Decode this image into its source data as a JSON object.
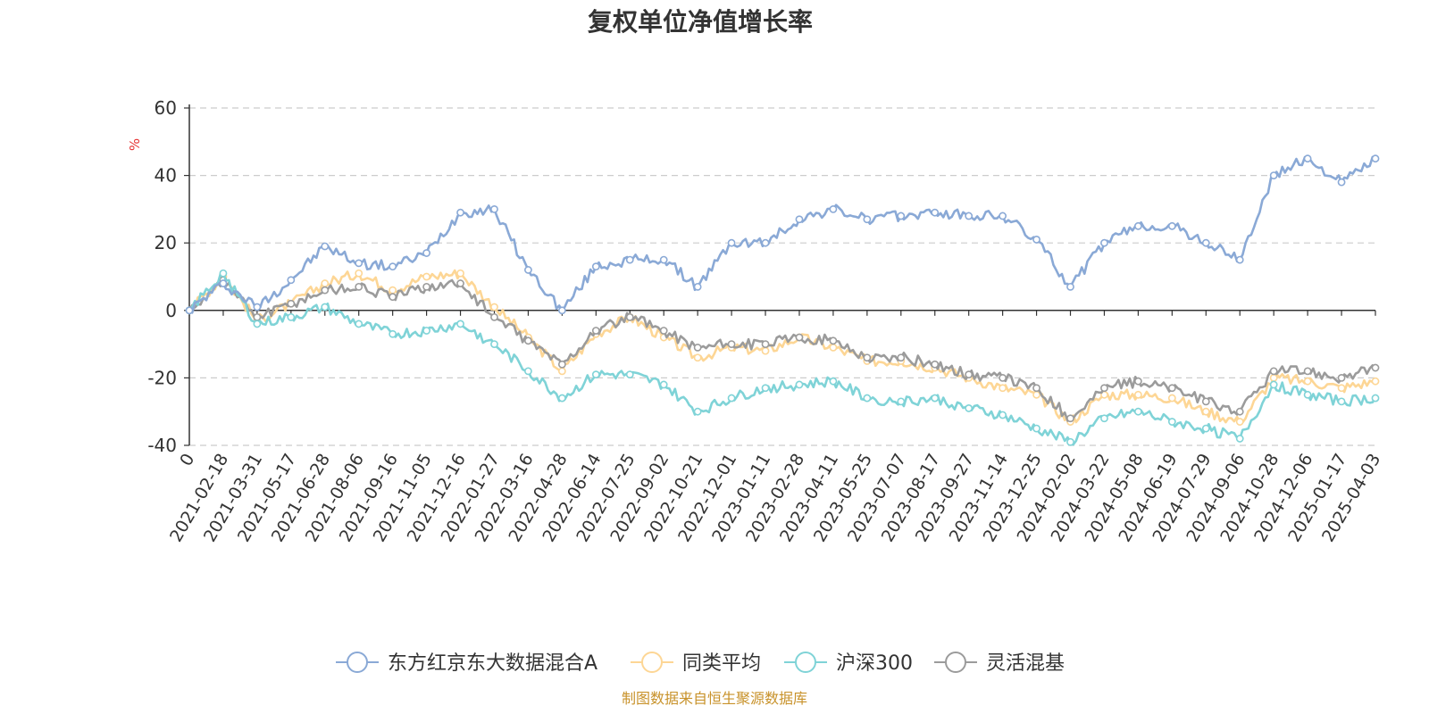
{
  "colors": {
    "series": [
      "#8aa9d6",
      "#fdd695",
      "#7fd3d7",
      "#9b9b9b"
    ],
    "unit": "#e63333",
    "source": "#c8922a",
    "grid": "#cccccc",
    "axis": "#333333"
  },
  "chart_data": {
    "type": "line",
    "title": "复权单位净值增长率",
    "ylabel": "%",
    "ylim": [
      -40,
      60
    ],
    "yticks": [
      "-40",
      "-20",
      "0",
      "20",
      "40",
      "60"
    ],
    "categories": [
      "0",
      "2021-02-18",
      "2021-03-31",
      "2021-05-17",
      "2021-06-28",
      "2021-08-06",
      "2021-09-16",
      "2021-11-05",
      "2021-12-16",
      "2022-01-27",
      "2022-03-16",
      "2022-04-28",
      "2022-06-14",
      "2022-07-25",
      "2022-09-02",
      "2022-10-21",
      "2022-12-01",
      "2023-01-11",
      "2023-02-28",
      "2023-04-11",
      "2023-05-25",
      "2023-07-07",
      "2023-08-17",
      "2023-09-27",
      "2023-11-14",
      "2023-12-25",
      "2024-02-02",
      "2024-03-22",
      "2024-05-08",
      "2024-06-19",
      "2024-07-29",
      "2024-09-06",
      "2024-10-28",
      "2024-12-06",
      "2025-01-17",
      "2025-04-03"
    ],
    "series": [
      {
        "name": "东方红京东大数据混合A",
        "values": [
          0,
          8,
          1,
          9,
          19,
          14,
          13,
          17,
          29,
          30,
          12,
          0,
          13,
          15,
          15,
          7,
          20,
          20,
          27,
          30,
          27,
          28,
          29,
          28,
          28,
          21,
          7,
          20,
          25,
          25,
          20,
          15,
          40,
          45,
          38,
          45
        ]
      },
      {
        "name": "同类平均",
        "values": [
          0,
          10,
          -3,
          2,
          8,
          11,
          6,
          10,
          11,
          1,
          -8,
          -18,
          -7,
          -2,
          -8,
          -14,
          -11,
          -12,
          -8,
          -11,
          -15,
          -15,
          -17,
          -20,
          -23,
          -25,
          -33,
          -25,
          -25,
          -26,
          -30,
          -33,
          -20,
          -21,
          -23,
          -21
        ]
      },
      {
        "name": "沪深300",
        "values": [
          0,
          11,
          -4,
          -2,
          1,
          -4,
          -7,
          -6,
          -4,
          -10,
          -18,
          -26,
          -19,
          -19,
          -22,
          -30,
          -26,
          -23,
          -22,
          -21,
          -26,
          -27,
          -26,
          -29,
          -31,
          -35,
          -39,
          -32,
          -30,
          -33,
          -35,
          -38,
          -22,
          -25,
          -27,
          -26
        ]
      },
      {
        "name": "灵活混基",
        "values": [
          0,
          9,
          -2,
          2,
          6,
          7,
          4,
          7,
          8,
          -2,
          -9,
          -16,
          -6,
          -2,
          -6,
          -11,
          -10,
          -10,
          -8,
          -9,
          -14,
          -14,
          -16,
          -19,
          -20,
          -23,
          -32,
          -23,
          -21,
          -23,
          -27,
          -30,
          -18,
          -18,
          -20,
          -17
        ]
      }
    ]
  },
  "legend": [
    {
      "label": "东方红京东大数据混合A"
    },
    {
      "label": "同类平均"
    },
    {
      "label": "沪深300"
    },
    {
      "label": "灵活混基"
    }
  ],
  "source": "制图数据来自恒生聚源数据库"
}
